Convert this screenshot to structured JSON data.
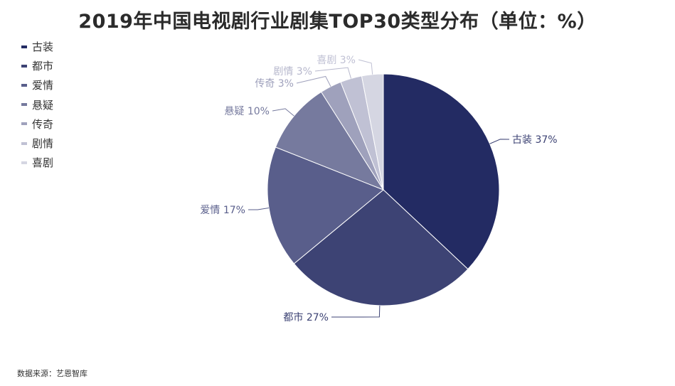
{
  "title": "2019年中国电视剧行业剧集TOP30类型分布（单位：%）",
  "source": "数据来源：艺恩智库",
  "chart_data": {
    "type": "pie",
    "title": "2019年中国电视剧行业剧集TOP30类型分布（单位：%）",
    "categories": [
      "古装",
      "都市",
      "爱情",
      "悬疑",
      "传奇",
      "剧情",
      "喜剧"
    ],
    "values": [
      37,
      27,
      17,
      10,
      3,
      3,
      3
    ],
    "unit": "%",
    "colors": [
      "#232b63",
      "#3d4374",
      "#595e8b",
      "#767a9e",
      "#9fa1bc",
      "#c0c1d4",
      "#d5d6e2"
    ],
    "label_colors": [
      "#3d4374",
      "#3d4374",
      "#595e8b",
      "#767a9e",
      "#9fa1bc",
      "#b6b7cc",
      "#c0c1d4"
    ],
    "legend_position": "top-left"
  }
}
